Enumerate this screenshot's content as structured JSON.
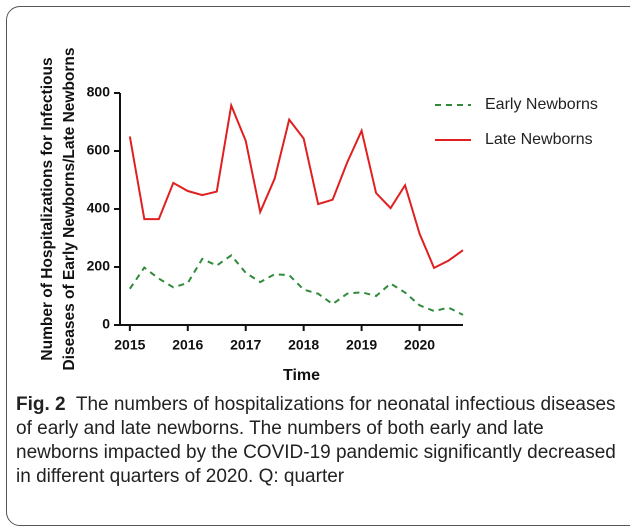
{
  "chart_data": {
    "type": "line",
    "ylabel": [
      "Number of Hospitalizations for Infectious",
      "Diseases of Early Newborns/Late Newborns"
    ],
    "xlabel": "Time",
    "x": [
      2015,
      2015.25,
      2015.5,
      2015.75,
      2016,
      2016.25,
      2016.5,
      2016.75,
      2017,
      2017.25,
      2017.5,
      2017.75,
      2018,
      2018.25,
      2018.5,
      2018.75,
      2019,
      2019.25,
      2019.5,
      2019.75,
      2020,
      2020.25,
      2020.5,
      2020.75
    ],
    "series": [
      {
        "name": "Early Newborns",
        "color": "#2e8b3a",
        "line_style": "dashed",
        "values": [
          125,
          198,
          160,
          130,
          145,
          228,
          205,
          240,
          180,
          148,
          175,
          172,
          122,
          108,
          72,
          108,
          113,
          100,
          143,
          112,
          68,
          48,
          60,
          35
        ]
      },
      {
        "name": "Late Newborns",
        "color": "#e02020",
        "line_style": "solid",
        "values": [
          650,
          365,
          365,
          490,
          462,
          448,
          460,
          757,
          635,
          390,
          505,
          708,
          643,
          417,
          432,
          560,
          670,
          455,
          403,
          482,
          315,
          197,
          222,
          258
        ]
      }
    ],
    "xlim": [
      2014.83,
      2020.75
    ],
    "xticks": [
      2015,
      2016,
      2017,
      2018,
      2019,
      2020
    ],
    "ylim": [
      0,
      800
    ],
    "yticks": [
      0,
      200,
      400,
      600,
      800
    ],
    "legend": "upper right"
  },
  "caption": {
    "label": "Fig. 2",
    "text": "The numbers of hospitalizations for neonatal infectious diseases of early and late newborns. The numbers of both early and late newborns impacted by the COVID-19 pandemic significantly decreased in different quarters of 2020. Q: quarter"
  }
}
